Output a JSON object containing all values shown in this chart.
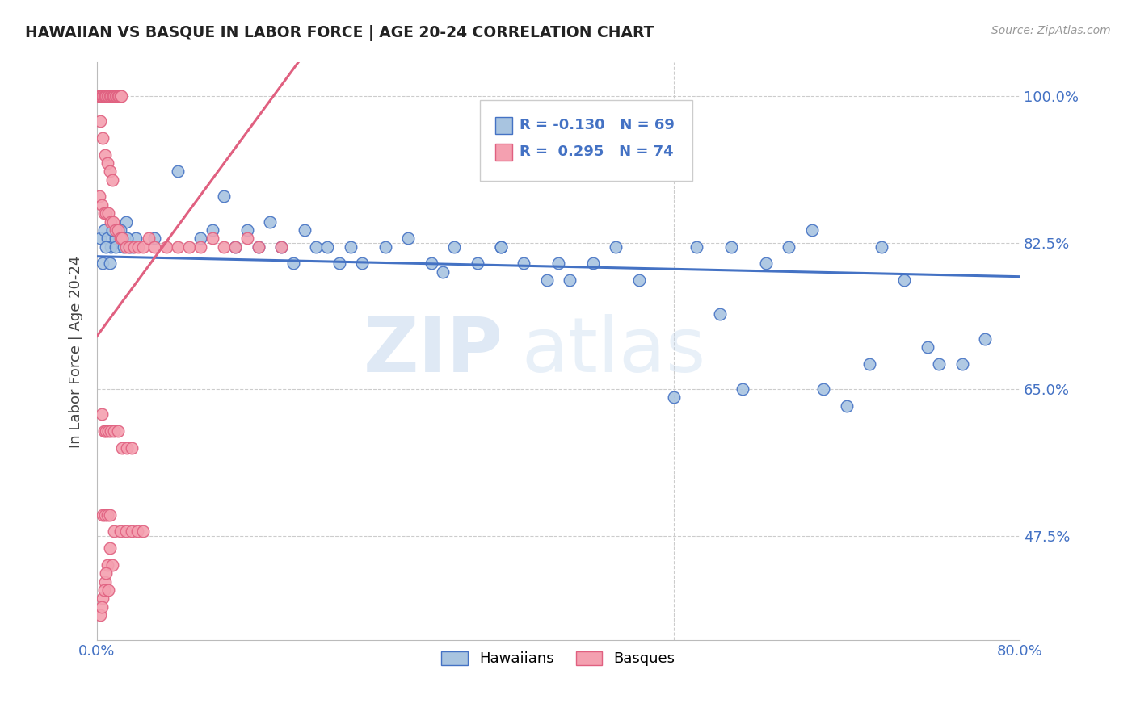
{
  "title": "HAWAIIAN VS BASQUE IN LABOR FORCE | AGE 20-24 CORRELATION CHART",
  "source": "Source: ZipAtlas.com",
  "ylabel": "In Labor Force | Age 20-24",
  "xlim": [
    0.0,
    0.8
  ],
  "ylim": [
    0.35,
    1.04
  ],
  "ytick_positions": [
    0.475,
    0.65,
    0.825,
    1.0
  ],
  "yticklabels": [
    "47.5%",
    "65.0%",
    "82.5%",
    "100.0%"
  ],
  "hawaiian_color": "#a8c4e0",
  "basque_color": "#f4a0b0",
  "line_hawaiian_color": "#4472c4",
  "line_basque_color": "#e06080",
  "R_hawaiian": -0.13,
  "N_hawaiian": 69,
  "R_basque": 0.295,
  "N_basque": 74,
  "watermark_text": "ZIP",
  "watermark_text2": "atlas",
  "hawaiian_x": [
    0.003,
    0.006,
    0.009,
    0.012,
    0.014,
    0.016,
    0.019,
    0.022,
    0.025,
    0.028,
    0.031,
    0.034,
    0.005,
    0.008,
    0.011,
    0.013,
    0.016,
    0.02,
    0.023,
    0.026,
    0.05,
    0.07,
    0.09,
    0.1,
    0.11,
    0.12,
    0.13,
    0.14,
    0.15,
    0.16,
    0.17,
    0.18,
    0.19,
    0.2,
    0.21,
    0.22,
    0.23,
    0.25,
    0.27,
    0.29,
    0.31,
    0.33,
    0.35,
    0.37,
    0.39,
    0.41,
    0.43,
    0.45,
    0.47,
    0.5,
    0.52,
    0.54,
    0.56,
    0.58,
    0.6,
    0.63,
    0.65,
    0.68,
    0.7,
    0.73,
    0.75,
    0.77,
    0.3,
    0.35,
    0.4,
    0.55,
    0.62,
    0.67,
    0.72
  ],
  "hawaiian_y": [
    0.83,
    0.84,
    0.83,
    0.82,
    0.84,
    0.83,
    0.84,
    0.83,
    0.85,
    0.82,
    0.82,
    0.83,
    0.8,
    0.82,
    0.8,
    0.84,
    0.82,
    0.84,
    0.82,
    0.83,
    0.83,
    0.91,
    0.83,
    0.84,
    0.88,
    0.82,
    0.84,
    0.82,
    0.85,
    0.82,
    0.8,
    0.84,
    0.82,
    0.82,
    0.8,
    0.82,
    0.8,
    0.82,
    0.83,
    0.8,
    0.82,
    0.8,
    0.82,
    0.8,
    0.78,
    0.78,
    0.8,
    0.82,
    0.78,
    0.64,
    0.82,
    0.74,
    0.65,
    0.8,
    0.82,
    0.65,
    0.63,
    0.82,
    0.78,
    0.68,
    0.68,
    0.71,
    0.79,
    0.82,
    0.8,
    0.82,
    0.84,
    0.68,
    0.7
  ],
  "basque_x": [
    0.002,
    0.003,
    0.004,
    0.005,
    0.006,
    0.007,
    0.008,
    0.009,
    0.01,
    0.011,
    0.012,
    0.013,
    0.014,
    0.015,
    0.016,
    0.017,
    0.018,
    0.019,
    0.02,
    0.021,
    0.003,
    0.005,
    0.007,
    0.009,
    0.011,
    0.013,
    0.002,
    0.004,
    0.006,
    0.008,
    0.01,
    0.012,
    0.014,
    0.016,
    0.018,
    0.02,
    0.022,
    0.025,
    0.028,
    0.032,
    0.036,
    0.04,
    0.045,
    0.05,
    0.06,
    0.07,
    0.08,
    0.09,
    0.1,
    0.11,
    0.12,
    0.13,
    0.14,
    0.16,
    0.004,
    0.006,
    0.008,
    0.01,
    0.012,
    0.015,
    0.018,
    0.022,
    0.026,
    0.03,
    0.005,
    0.007,
    0.009,
    0.011,
    0.015,
    0.02,
    0.025,
    0.03,
    0.035,
    0.04
  ],
  "basque_y": [
    1.0,
    1.0,
    1.0,
    1.0,
    1.0,
    1.0,
    1.0,
    1.0,
    1.0,
    1.0,
    1.0,
    1.0,
    1.0,
    1.0,
    1.0,
    1.0,
    1.0,
    1.0,
    1.0,
    1.0,
    0.97,
    0.95,
    0.93,
    0.92,
    0.91,
    0.9,
    0.88,
    0.87,
    0.86,
    0.86,
    0.86,
    0.85,
    0.85,
    0.84,
    0.84,
    0.83,
    0.83,
    0.82,
    0.82,
    0.82,
    0.82,
    0.82,
    0.83,
    0.82,
    0.82,
    0.82,
    0.82,
    0.82,
    0.83,
    0.82,
    0.82,
    0.83,
    0.82,
    0.82,
    0.62,
    0.6,
    0.6,
    0.6,
    0.6,
    0.6,
    0.6,
    0.58,
    0.58,
    0.58,
    0.5,
    0.5,
    0.5,
    0.5,
    0.48,
    0.48,
    0.48,
    0.48,
    0.48,
    0.48
  ],
  "basque_low_x": [
    0.003,
    0.005,
    0.007,
    0.009,
    0.011,
    0.013,
    0.004,
    0.006,
    0.008,
    0.01
  ],
  "basque_low_y": [
    0.38,
    0.4,
    0.42,
    0.44,
    0.46,
    0.44,
    0.39,
    0.41,
    0.43,
    0.41
  ]
}
